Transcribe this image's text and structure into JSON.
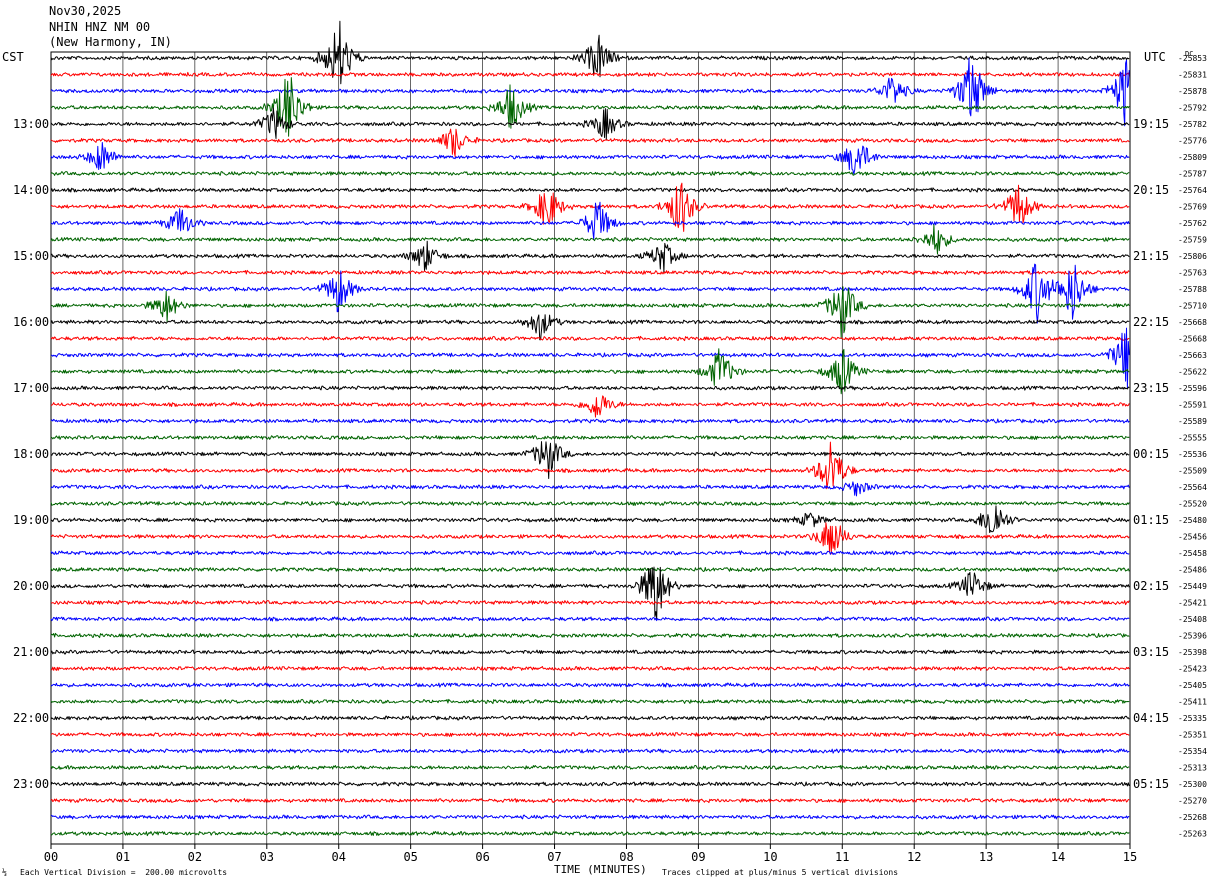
{
  "header": {
    "date": "Nov30,2025",
    "station": "NHIN HNZ NM 00",
    "location": "(New Harmony, IN)"
  },
  "left_tz": "CST",
  "right_tz": "UTC",
  "dc_label": "DC",
  "footer": {
    "scale_note": "Each Vertical Division =  200.00 microvolts",
    "xlabel": "TIME (MINUTES)",
    "clip_note": "Traces clipped at plus/minus 5 vertical divisions"
  },
  "chart_data": {
    "type": "line",
    "subtype": "helicorder",
    "xlabel": "TIME (MINUTES)",
    "xlim": [
      0,
      15
    ],
    "x_ticks": [
      "00",
      "01",
      "02",
      "03",
      "04",
      "05",
      "06",
      "07",
      "08",
      "09",
      "10",
      "11",
      "12",
      "13",
      "14",
      "15"
    ],
    "row_minutes": 15,
    "trace_colors": [
      "#000000",
      "#ff0000",
      "#0000ff",
      "#006400"
    ],
    "left_hour_labels": [
      "13:00",
      "14:00",
      "15:00",
      "16:00",
      "17:00",
      "18:00",
      "19:00",
      "20:00",
      "21:00",
      "22:00",
      "23:00"
    ],
    "right_hour_labels": [
      "19:15",
      "20:15",
      "21:15",
      "22:15",
      "23:15",
      "00:15",
      "01:15",
      "02:15",
      "03:15",
      "04:15",
      "05:15"
    ],
    "trace_dc_offsets": [
      "-25853",
      "-25831",
      "-25878",
      "-25792",
      "-25782",
      "-25776",
      "-25809",
      "-25787",
      "-25764",
      "-25769",
      "-25762",
      "-25759",
      "-25806",
      "-25763",
      "-25788",
      "-25710",
      "-25668",
      "-25668",
      "-25663",
      "-25622",
      "-25596",
      "-25591",
      "-25589",
      "-25555",
      "-25536",
      "-25509",
      "-25564",
      "-25520",
      "-25480",
      "-25456",
      "-25458",
      "-25486",
      "-25449",
      "-25421",
      "-25408",
      "-25396",
      "-25398",
      "-25423",
      "-25405",
      "-25411",
      "-25335",
      "-25351",
      "-25354",
      "-25313",
      "-25300",
      "-25270",
      "-25268",
      "-25263"
    ],
    "grid": true,
    "events": [
      {
        "row": 0,
        "minute": 4.0,
        "amplitude": 5
      },
      {
        "row": 0,
        "minute": 7.6,
        "amplitude": 3
      },
      {
        "row": 2,
        "minute": 11.7,
        "amplitude": 2
      },
      {
        "row": 2,
        "minute": 12.8,
        "amplitude": 5
      },
      {
        "row": 2,
        "minute": 14.95,
        "amplitude": 5
      },
      {
        "row": 3,
        "minute": 3.3,
        "amplitude": 5
      },
      {
        "row": 3,
        "minute": 6.4,
        "amplitude": 3
      },
      {
        "row": 4,
        "minute": 3.1,
        "amplitude": 2
      },
      {
        "row": 4,
        "minute": 7.7,
        "amplitude": 2
      },
      {
        "row": 5,
        "minute": 5.6,
        "amplitude": 2
      },
      {
        "row": 6,
        "minute": 0.7,
        "amplitude": 2
      },
      {
        "row": 6,
        "minute": 11.2,
        "amplitude": 3
      },
      {
        "row": 9,
        "minute": 6.9,
        "amplitude": 3
      },
      {
        "row": 9,
        "minute": 8.75,
        "amplitude": 4
      },
      {
        "row": 9,
        "minute": 13.45,
        "amplitude": 3
      },
      {
        "row": 10,
        "minute": 1.8,
        "amplitude": 2
      },
      {
        "row": 10,
        "minute": 7.6,
        "amplitude": 3
      },
      {
        "row": 11,
        "minute": 12.3,
        "amplitude": 2
      },
      {
        "row": 12,
        "minute": 5.2,
        "amplitude": 2
      },
      {
        "row": 12,
        "minute": 8.5,
        "amplitude": 2
      },
      {
        "row": 14,
        "minute": 4.0,
        "amplitude": 3
      },
      {
        "row": 14,
        "minute": 13.7,
        "amplitude": 4
      },
      {
        "row": 14,
        "minute": 14.2,
        "amplitude": 4
      },
      {
        "row": 15,
        "minute": 1.6,
        "amplitude": 2
      },
      {
        "row": 15,
        "minute": 11.0,
        "amplitude": 4
      },
      {
        "row": 16,
        "minute": 6.8,
        "amplitude": 2
      },
      {
        "row": 18,
        "minute": 14.95,
        "amplitude": 4
      },
      {
        "row": 19,
        "minute": 9.3,
        "amplitude": 3
      },
      {
        "row": 19,
        "minute": 11.0,
        "amplitude": 3
      },
      {
        "row": 21,
        "minute": 7.6,
        "amplitude": 2
      },
      {
        "row": 24,
        "minute": 6.9,
        "amplitude": 3
      },
      {
        "row": 25,
        "minute": 10.85,
        "amplitude": 4
      },
      {
        "row": 26,
        "minute": 11.2,
        "amplitude": 1
      },
      {
        "row": 28,
        "minute": 13.1,
        "amplitude": 3
      },
      {
        "row": 28,
        "minute": 10.55,
        "amplitude": 1
      },
      {
        "row": 29,
        "minute": 10.85,
        "amplitude": 3
      },
      {
        "row": 32,
        "minute": 8.4,
        "amplitude": 5
      },
      {
        "row": 32,
        "minute": 12.8,
        "amplitude": 2
      }
    ]
  }
}
